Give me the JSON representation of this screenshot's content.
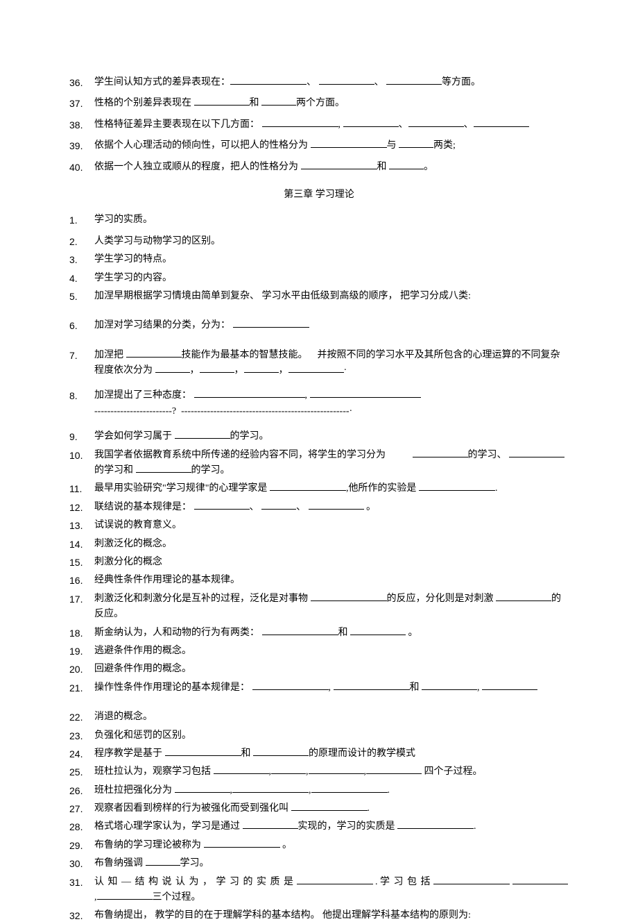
{
  "section_a": [
    {
      "n": "36.",
      "html": "学生间认知方式的差异表现在：<span class='blank-long'></span>、 <span class='blank-med'></span>、 <span class='blank-med'></span>等方面。"
    },
    {
      "n": "37.",
      "html": "性格的个别差异表现在 <span class='blank-med'></span>和 <span class='blank-short'></span>两个方面。"
    },
    {
      "n": "38.",
      "html": "性格特征差异主要表现在以下几方面： <span class='blank-long'></span>, <span class='blank-med'></span>、<span class='blank-med'></span>、<span class='blank-med'></span>"
    },
    {
      "n": "39.",
      "html": "依据个人心理活动的倾向性，可以把人的性格分为 <span class='blank-long'></span>与 <span class='blank-short'></span>两类;"
    },
    {
      "n": "40.",
      "html": "依据一个人独立或顺从的程度，把人的性格分为 <span class='blank-long'></span>和 <span class='blank-short'></span>。"
    }
  ],
  "chapter_title": "第三章 学习理论",
  "section_b": [
    {
      "n": "1.",
      "html": "学习的实质。",
      "cls": ""
    },
    {
      "n": "2.",
      "html": "人类学习与动物学习的区别。",
      "cls": "tight"
    },
    {
      "n": "3.",
      "html": "学生学习的特点。",
      "cls": "tight"
    },
    {
      "n": "4.",
      "html": "学生学习的内容。",
      "cls": "tight"
    },
    {
      "n": "5.",
      "html": "加涅早期根据学习情境由简单到复杂、 学习水平由低级到高级的顺序， 把学习分成八类:",
      "cls": "gap"
    },
    {
      "n": "6.",
      "html": "加涅对学习结果的分类，分为： <span class='blank-long'></span>",
      "cls": "gap"
    },
    {
      "n": "7.",
      "html": "加涅把 <span class='blank-med'></span>技能作为最基本的智慧技能。&nbsp;&nbsp;&nbsp;&nbsp;并按照不同的学习水平及其所包含的心理运算的不同复杂程度依次分为 <span class='blank-short'></span>，<span class='blank-short'></span>，<span class='blank-short'></span>，<span class='blank-med'></span>·",
      "cls": "gap-sm"
    },
    {
      "n": "8.",
      "html": "加涅提出了三种态度： <span class='blank-xl'></span>, <span class='blank-xl'></span><br>------------------------? &nbsp;----------------------------------------------------·",
      "cls": "gap-sm"
    },
    {
      "n": "9.",
      "html": "学会如何学习属于 <span class='blank-med'></span>的学习。",
      "cls": "tight"
    },
    {
      "n": "10.",
      "html": "我国学者依据教育系统中所传递的经验内容不同，将学生的学习分为 &nbsp;&nbsp;&nbsp;&nbsp;&nbsp;&nbsp;&nbsp;&nbsp;&nbsp;&nbsp;<span class='blank-med'></span>的学习、 <span class='blank-med'></span>的学习和 <span class='blank-med'></span>的学习。",
      "cls": "tight"
    },
    {
      "n": "11.",
      "html": "最早用实验研究\"学习规律\"的心理学家是 <span class='blank-long'></span>,他所作的实验是 <span class='blank-long'></span>.",
      "cls": "tight"
    },
    {
      "n": "12.",
      "html": "联结说的基本规律是： <span class='blank-med'></span>、 <span class='blank-short'></span>、 <span class='blank-med'></span> 。",
      "cls": "tight"
    },
    {
      "n": "13.",
      "html": "试误说的教育意义。",
      "cls": "tight"
    },
    {
      "n": "14.",
      "html": "刺激泛化的概念。",
      "cls": "tight"
    },
    {
      "n": "15.",
      "html": "刺激分化的概念",
      "cls": "tight"
    },
    {
      "n": "16.",
      "html": "经典性条件作用理论的基本规律。",
      "cls": "tight"
    },
    {
      "n": "17.",
      "html": "刺激泛化和刺激分化是互补的过程，泛化是对事物 <span class='blank-long'></span>的反应，分化则是对刺激 <span class='blank-med'></span>的反应。",
      "cls": "tight"
    },
    {
      "n": "18.",
      "html": "斯金纳认为，人和动物的行为有两类： <span class='blank-long'></span>和 <span class='blank-med'></span> 。",
      "cls": "tight"
    },
    {
      "n": "19.",
      "html": "逃避条件作用的概念。",
      "cls": "tight"
    },
    {
      "n": "20.",
      "html": "回避条件作用的概念。",
      "cls": "tight"
    },
    {
      "n": "21.",
      "html": "操作性条件作用理论的基本规律是： <span class='blank-long'></span>, <span class='blank-long'></span>和 <span class='blank-med'></span>, <span class='blank-med'></span>",
      "cls": "gap"
    },
    {
      "n": "22.",
      "html": "消退的概念。",
      "cls": "tight"
    },
    {
      "n": "23.",
      "html": "负强化和惩罚的区别。",
      "cls": "tight"
    },
    {
      "n": "24.",
      "html": "程序教学是基于 <span class='blank-long'></span>和 <span class='blank-med'></span>的原理而设计的教学模式",
      "cls": "tight"
    },
    {
      "n": "25.",
      "html": "班杜拉认为，观察学习包括 <span class='blank-med'></span>,<span class='blank-short'></span>,<span class='blank-med'></span>,<span class='blank-med'></span> 四个子过程。",
      "cls": "tight"
    },
    {
      "n": "26.",
      "html": "班杜拉把强化分为 <span class='blank-med'></span>,<span class='blank-long'></span>,<span class='blank-long'></span>.",
      "cls": "tight"
    },
    {
      "n": "27.",
      "html": "观察者因看到榜样的行为被强化而受到强化叫 <span class='blank-long'></span>.",
      "cls": "tight"
    },
    {
      "n": "28.",
      "html": "格式塔心理学家认为，学习是通过 <span class='blank-med'></span>实现的，学习的实质是 <span class='blank-long'></span>.",
      "cls": "tight"
    },
    {
      "n": "29.",
      "html": "布鲁纳的学习理论被称为 <span class='blank-long'></span> 。",
      "cls": "tight"
    },
    {
      "n": "30.",
      "html": "布鲁纳强调 <span class='blank-short'></span>学习。",
      "cls": "tight"
    },
    {
      "n": "31.",
      "html": "<span class='spread'>认 知 — 结 构 说 认 为 ， 学 习 的 实 质 是</span> <span class='blank-long'></span> . <span class='spread'>学 习 包 括</span> <span class='blank-long'></span> <span class='blank-med'></span>,<span class='blank-med'></span>三个过程。",
      "cls": "tight"
    },
    {
      "n": "32.",
      "html": "布鲁纳提出， 教学的目的在于理解学科的基本结构。 他提出理解学科基本结构的原则为:",
      "cls": "tight"
    }
  ]
}
